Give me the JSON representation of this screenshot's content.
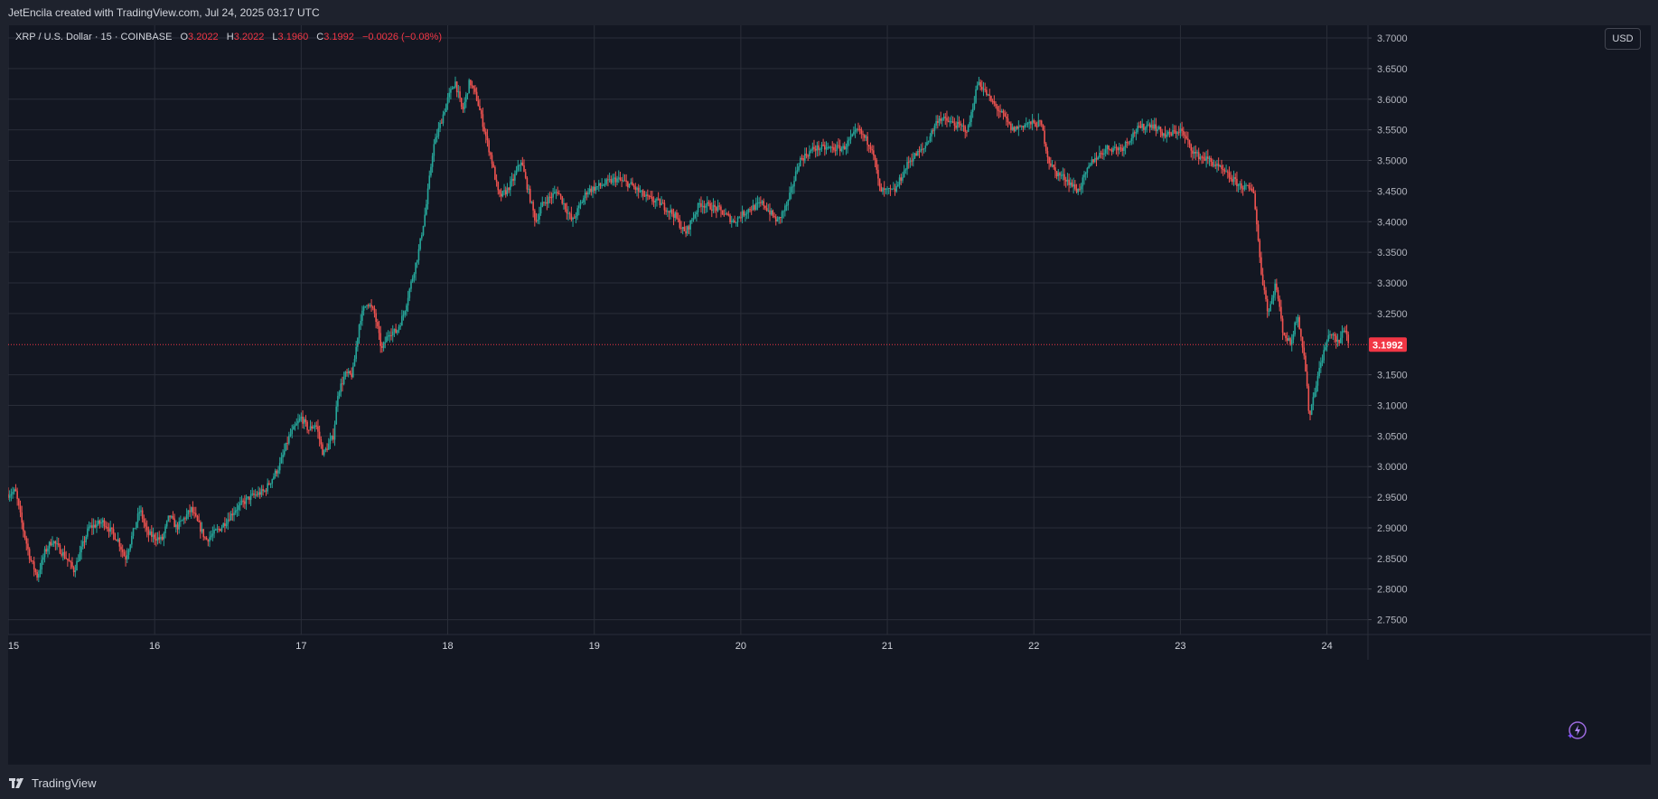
{
  "header": {
    "caption": "JetEncila created with TradingView.com, Jul 24, 2025 03:17 UTC"
  },
  "legend": {
    "symbol": "XRP / U.S. Dollar · 15 · COINBASE",
    "open_label": "O",
    "open": "3.2022",
    "high_label": "H",
    "high": "3.2022",
    "low_label": "L",
    "low": "3.1960",
    "close_label": "C",
    "close": "3.1992",
    "change": "−0.0026 (−0.08%)"
  },
  "currency_button": {
    "label": "USD"
  },
  "brand": {
    "name": "TradingView",
    "icon": "tradingview-logo-icon"
  },
  "icons": {
    "magic": "lightning-sparkle-icon"
  },
  "colors": {
    "up": "#26a69a",
    "down": "#ef5350",
    "price_badge": "#f23645",
    "background": "#131722",
    "grid": "#2a2e39"
  },
  "chart_data": {
    "type": "candlestick",
    "interval": "15",
    "ylim": [
      2.725,
      3.72
    ],
    "y_ticks": [
      "3.7000",
      "3.6500",
      "3.6000",
      "3.5500",
      "3.5000",
      "3.4500",
      "3.4000",
      "3.3500",
      "3.3000",
      "3.2500",
      "3.1500",
      "3.1000",
      "3.0500",
      "3.0000",
      "2.9500",
      "2.9000",
      "2.8500",
      "2.8000",
      "2.7500"
    ],
    "current_price": "3.1992",
    "x_ticks": [
      "15",
      "16",
      "17",
      "18",
      "19",
      "20",
      "21",
      "22",
      "23",
      "24"
    ],
    "x_tick_days": [
      15,
      16,
      17,
      18,
      19,
      20,
      21,
      22,
      23,
      24
    ],
    "x_range_days": [
      15.0,
      24.28
    ],
    "price_path": [
      [
        15.0,
        2.955
      ],
      [
        15.05,
        2.96
      ],
      [
        15.1,
        2.9
      ],
      [
        15.15,
        2.85
      ],
      [
        15.2,
        2.82
      ],
      [
        15.25,
        2.86
      ],
      [
        15.3,
        2.88
      ],
      [
        15.4,
        2.85
      ],
      [
        15.45,
        2.83
      ],
      [
        15.55,
        2.9
      ],
      [
        15.65,
        2.91
      ],
      [
        15.75,
        2.88
      ],
      [
        15.8,
        2.85
      ],
      [
        15.9,
        2.93
      ],
      [
        15.95,
        2.89
      ],
      [
        16.05,
        2.88
      ],
      [
        16.1,
        2.92
      ],
      [
        16.15,
        2.9
      ],
      [
        16.25,
        2.93
      ],
      [
        16.35,
        2.88
      ],
      [
        16.45,
        2.9
      ],
      [
        16.55,
        2.93
      ],
      [
        16.65,
        2.95
      ],
      [
        16.75,
        2.96
      ],
      [
        16.85,
        3.0
      ],
      [
        16.92,
        3.05
      ],
      [
        17.0,
        3.08
      ],
      [
        17.05,
        3.06
      ],
      [
        17.1,
        3.07
      ],
      [
        17.15,
        3.02
      ],
      [
        17.22,
        3.05
      ],
      [
        17.25,
        3.12
      ],
      [
        17.3,
        3.15
      ],
      [
        17.35,
        3.15
      ],
      [
        17.4,
        3.24
      ],
      [
        17.45,
        3.27
      ],
      [
        17.5,
        3.25
      ],
      [
        17.55,
        3.19
      ],
      [
        17.6,
        3.22
      ],
      [
        17.65,
        3.22
      ],
      [
        17.7,
        3.25
      ],
      [
        17.75,
        3.3
      ],
      [
        17.8,
        3.35
      ],
      [
        17.85,
        3.42
      ],
      [
        17.9,
        3.52
      ],
      [
        17.95,
        3.56
      ],
      [
        18.0,
        3.6
      ],
      [
        18.05,
        3.63
      ],
      [
        18.1,
        3.58
      ],
      [
        18.15,
        3.63
      ],
      [
        18.2,
        3.6
      ],
      [
        18.25,
        3.55
      ],
      [
        18.3,
        3.5
      ],
      [
        18.35,
        3.44
      ],
      [
        18.4,
        3.45
      ],
      [
        18.45,
        3.47
      ],
      [
        18.5,
        3.5
      ],
      [
        18.55,
        3.45
      ],
      [
        18.6,
        3.4
      ],
      [
        18.65,
        3.43
      ],
      [
        18.75,
        3.45
      ],
      [
        18.85,
        3.4
      ],
      [
        18.95,
        3.45
      ],
      [
        19.05,
        3.46
      ],
      [
        19.15,
        3.47
      ],
      [
        19.25,
        3.46
      ],
      [
        19.35,
        3.44
      ],
      [
        19.45,
        3.43
      ],
      [
        19.55,
        3.41
      ],
      [
        19.62,
        3.38
      ],
      [
        19.72,
        3.43
      ],
      [
        19.85,
        3.42
      ],
      [
        19.95,
        3.4
      ],
      [
        20.05,
        3.42
      ],
      [
        20.15,
        3.43
      ],
      [
        20.25,
        3.4
      ],
      [
        20.32,
        3.43
      ],
      [
        20.4,
        3.5
      ],
      [
        20.5,
        3.52
      ],
      [
        20.6,
        3.52
      ],
      [
        20.7,
        3.52
      ],
      [
        20.8,
        3.55
      ],
      [
        20.9,
        3.52
      ],
      [
        20.95,
        3.45
      ],
      [
        21.05,
        3.45
      ],
      [
        21.15,
        3.5
      ],
      [
        21.25,
        3.52
      ],
      [
        21.35,
        3.57
      ],
      [
        21.45,
        3.56
      ],
      [
        21.55,
        3.55
      ],
      [
        21.62,
        3.63
      ],
      [
        21.7,
        3.6
      ],
      [
        21.8,
        3.57
      ],
      [
        21.85,
        3.55
      ],
      [
        21.95,
        3.56
      ],
      [
        22.05,
        3.56
      ],
      [
        22.1,
        3.5
      ],
      [
        22.15,
        3.48
      ],
      [
        22.22,
        3.47
      ],
      [
        22.3,
        3.45
      ],
      [
        22.4,
        3.5
      ],
      [
        22.5,
        3.52
      ],
      [
        22.6,
        3.52
      ],
      [
        22.7,
        3.55
      ],
      [
        22.8,
        3.56
      ],
      [
        22.9,
        3.54
      ],
      [
        23.0,
        3.55
      ],
      [
        23.1,
        3.51
      ],
      [
        23.2,
        3.5
      ],
      [
        23.3,
        3.48
      ],
      [
        23.4,
        3.46
      ],
      [
        23.5,
        3.45
      ],
      [
        23.55,
        3.32
      ],
      [
        23.6,
        3.25
      ],
      [
        23.65,
        3.3
      ],
      [
        23.7,
        3.22
      ],
      [
        23.75,
        3.2
      ],
      [
        23.8,
        3.25
      ],
      [
        23.85,
        3.17
      ],
      [
        23.88,
        3.08
      ],
      [
        23.92,
        3.13
      ],
      [
        23.97,
        3.18
      ],
      [
        24.02,
        3.22
      ],
      [
        24.08,
        3.2
      ],
      [
        24.12,
        3.23
      ],
      [
        24.15,
        3.2
      ]
    ]
  }
}
